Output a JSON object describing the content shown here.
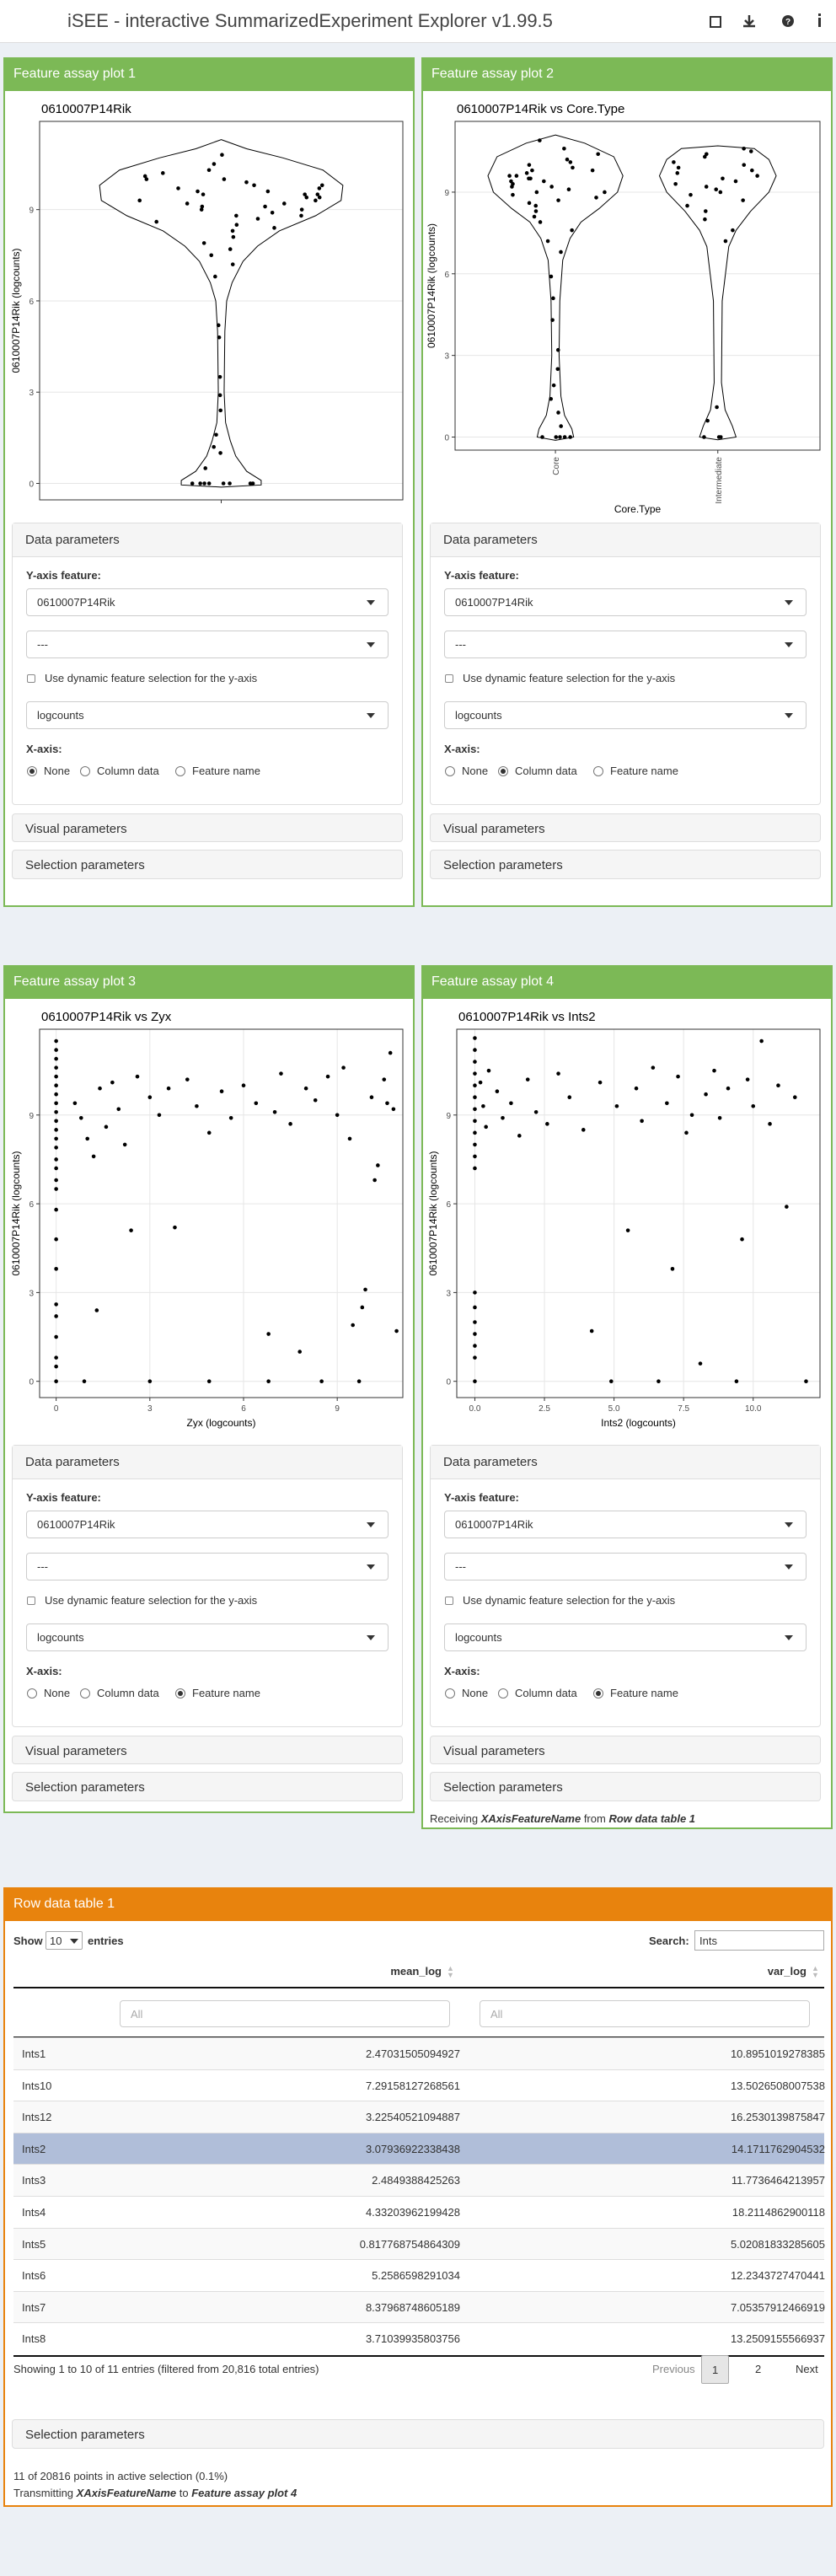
{
  "header": {
    "title": "iSEE - interactive SummarizedExperiment Explorer v1.99.5"
  },
  "panels": [
    {
      "title": "Feature assay plot 1",
      "plot": {
        "type": "violin",
        "title": "0610007P14Rik",
        "ylabel": "0610007P14Rik (logcounts)",
        "ylim": [
          -0.54,
          11.9
        ],
        "yticks": [
          0,
          3,
          6,
          9
        ],
        "grid": true,
        "point_color": "#000000",
        "series": [
          {
            "values": [
              10.8,
              10.5,
              10.3,
              10.2,
              10.1,
              10.0,
              10.0,
              9.9,
              9.8,
              9.8,
              9.7,
              9.7,
              9.6,
              9.6,
              9.5,
              9.5,
              9.5,
              9.4,
              9.4,
              9.3,
              9.3,
              9.2,
              9.2,
              9.1,
              9.1,
              9.0,
              9.0,
              8.9,
              8.8,
              8.8,
              8.7,
              8.6,
              8.5,
              8.4,
              8.3,
              8.1,
              7.9,
              7.7,
              7.5,
              7.2,
              6.8,
              5.2,
              4.8,
              3.5,
              2.9,
              2.4,
              1.6,
              1.2,
              1.0,
              0.5,
              0,
              0,
              0,
              0,
              0,
              0,
              0,
              0
            ]
          }
        ]
      },
      "data_parameters": {
        "heading": "Data parameters",
        "y_axis_label": "Y-axis feature:",
        "y_feature": "0610007P14Rik",
        "second_feature": "---",
        "dynamic_label": "Use dynamic feature selection for the y-axis",
        "assay": "logcounts",
        "x_axis_label": "X-axis:",
        "x_axis_options": [
          "None",
          "Column data",
          "Feature name"
        ],
        "x_axis_selected": 0
      },
      "visual_parameters": "Visual parameters",
      "selection_parameters": "Selection parameters"
    },
    {
      "title": "Feature assay plot 2",
      "plot": {
        "type": "violin",
        "title": "0610007P14Rik vs Core.Type",
        "ylabel": "0610007P14Rik (logcounts)",
        "xlabel": "Core.Type",
        "ylim": [
          -0.48,
          11.6
        ],
        "yticks": [
          0,
          3,
          6,
          9
        ],
        "grid": true,
        "point_color": "#000000",
        "series": [
          {
            "name": "Core",
            "values": [
              10.9,
              10.6,
              10.4,
              10.2,
              10.1,
              10.0,
              9.9,
              9.8,
              9.8,
              9.7,
              9.6,
              9.6,
              9.5,
              9.5,
              9.4,
              9.4,
              9.3,
              9.2,
              9.2,
              9.1,
              9.0,
              9.0,
              8.9,
              8.8,
              8.7,
              8.6,
              8.5,
              8.3,
              8.1,
              7.9,
              7.6,
              7.2,
              6.8,
              5.9,
              5.1,
              4.3,
              3.2,
              2.5,
              1.9,
              1.4,
              0.9,
              0.4,
              0,
              0,
              0,
              0,
              0
            ]
          },
          {
            "name": "Intermediate",
            "values": [
              10.6,
              10.5,
              10.4,
              10.3,
              10.1,
              10.0,
              9.9,
              9.8,
              9.7,
              9.6,
              9.5,
              9.4,
              9.3,
              9.2,
              9.1,
              9.0,
              8.9,
              8.7,
              8.5,
              8.3,
              8.0,
              7.6,
              7.2,
              1.1,
              0.6,
              0,
              0,
              0
            ]
          }
        ]
      },
      "data_parameters": {
        "heading": "Data parameters",
        "y_axis_label": "Y-axis feature:",
        "y_feature": "0610007P14Rik",
        "second_feature": "---",
        "dynamic_label": "Use dynamic feature selection for the y-axis",
        "assay": "logcounts",
        "x_axis_label": "X-axis:",
        "x_axis_options": [
          "None",
          "Column data",
          "Feature name"
        ],
        "x_axis_selected": 1
      },
      "visual_parameters": "Visual parameters",
      "selection_parameters": "Selection parameters"
    },
    {
      "title": "Feature assay plot 3",
      "plot": {
        "type": "scatter",
        "title": "0610007P14Rik vs Zyx",
        "ylabel": "0610007P14Rik (logcounts)",
        "xlabel": "Zyx (logcounts)",
        "xlim": [
          -0.53,
          11.1
        ],
        "xticks": [
          0,
          3,
          6,
          9
        ],
        "ylim": [
          -0.55,
          11.9
        ],
        "yticks": [
          0,
          3,
          6,
          9
        ],
        "grid": true,
        "point_color": "#000000",
        "points": [
          [
            0,
            11.5
          ],
          [
            0,
            11.2
          ],
          [
            0,
            10.9
          ],
          [
            0,
            10.6
          ],
          [
            0,
            10.3
          ],
          [
            0,
            10.0
          ],
          [
            0,
            9.7
          ],
          [
            0,
            9.4
          ],
          [
            0,
            9.1
          ],
          [
            0,
            8.8
          ],
          [
            0,
            8.5
          ],
          [
            0,
            8.2
          ],
          [
            0,
            7.9
          ],
          [
            0,
            7.5
          ],
          [
            0,
            7.2
          ],
          [
            0,
            6.8
          ],
          [
            0,
            6.5
          ],
          [
            0,
            5.8
          ],
          [
            0,
            4.8
          ],
          [
            0,
            3.8
          ],
          [
            0,
            2.6
          ],
          [
            0,
            2.2
          ],
          [
            0,
            1.5
          ],
          [
            0,
            0.8
          ],
          [
            0,
            0.5
          ],
          [
            0,
            0
          ],
          [
            0.6,
            9.4
          ],
          [
            0.8,
            8.9
          ],
          [
            1.0,
            8.2
          ],
          [
            1.2,
            7.6
          ],
          [
            1.4,
            9.9
          ],
          [
            1.6,
            8.6
          ],
          [
            1.8,
            10.1
          ],
          [
            2.0,
            9.2
          ],
          [
            2.2,
            8.0
          ],
          [
            2.4,
            5.1
          ],
          [
            2.6,
            10.3
          ],
          [
            3.0,
            9.6
          ],
          [
            3.3,
            9.0
          ],
          [
            3.6,
            9.9
          ],
          [
            3.8,
            5.2
          ],
          [
            4.2,
            10.2
          ],
          [
            4.5,
            9.3
          ],
          [
            4.9,
            8.4
          ],
          [
            5.3,
            9.8
          ],
          [
            5.6,
            8.9
          ],
          [
            6.0,
            10.0
          ],
          [
            6.4,
            9.4
          ],
          [
            6.8,
            1.6
          ],
          [
            7.0,
            9.1
          ],
          [
            7.2,
            10.4
          ],
          [
            7.5,
            8.7
          ],
          [
            7.8,
            1.0
          ],
          [
            8.0,
            9.9
          ],
          [
            8.3,
            9.5
          ],
          [
            8.5,
            0
          ],
          [
            8.7,
            10.3
          ],
          [
            9.0,
            9.0
          ],
          [
            9.2,
            10.6
          ],
          [
            9.4,
            8.2
          ],
          [
            9.5,
            1.9
          ],
          [
            9.7,
            0
          ],
          [
            9.8,
            2.5
          ],
          [
            9.9,
            3.1
          ],
          [
            10.1,
            9.6
          ],
          [
            10.3,
            7.3
          ],
          [
            10.5,
            10.2
          ],
          [
            10.7,
            11.1
          ],
          [
            10.9,
            1.7
          ],
          [
            10.6,
            9.4
          ],
          [
            1.3,
            2.4
          ],
          [
            0.9,
            0
          ],
          [
            3.0,
            0
          ],
          [
            6.8,
            0
          ],
          [
            4.9,
            0
          ],
          [
            10.2,
            6.8
          ],
          [
            10.8,
            9.2
          ]
        ]
      },
      "data_parameters": {
        "heading": "Data parameters",
        "y_axis_label": "Y-axis feature:",
        "y_feature": "0610007P14Rik",
        "second_feature": "---",
        "dynamic_label": "Use dynamic feature selection for the y-axis",
        "assay": "logcounts",
        "x_axis_label": "X-axis:",
        "x_axis_options": [
          "None",
          "Column data",
          "Feature name"
        ],
        "x_axis_selected": 2
      },
      "visual_parameters": "Visual parameters",
      "selection_parameters": "Selection parameters"
    },
    {
      "title": "Feature assay plot 4",
      "plot": {
        "type": "scatter",
        "title": "0610007P14Rik vs Ints2",
        "ylabel": "0610007P14Rik (logcounts)",
        "xlabel": "Ints2 (logcounts)",
        "xlim": [
          -0.65,
          12.4
        ],
        "xticks": [
          {
            "value": 0,
            "label": "0.0"
          },
          {
            "value": 2.5,
            "label": "2.5"
          },
          {
            "value": 5,
            "label": "5.0"
          },
          {
            "value": 7.5,
            "label": "7.5"
          },
          {
            "value": 10,
            "label": "10.0"
          }
        ],
        "ylim": [
          -0.55,
          11.9
        ],
        "yticks": [
          0,
          3,
          6,
          9
        ],
        "grid": true,
        "point_color": "#000000",
        "points": [
          [
            0,
            11.6
          ],
          [
            0,
            11.2
          ],
          [
            0,
            10.8
          ],
          [
            0,
            10.4
          ],
          [
            0,
            10.0
          ],
          [
            0,
            9.6
          ],
          [
            0,
            9.2
          ],
          [
            0,
            8.8
          ],
          [
            0,
            8.4
          ],
          [
            0,
            8.0
          ],
          [
            0,
            7.6
          ],
          [
            0,
            7.2
          ],
          [
            0,
            3.0
          ],
          [
            0,
            2.5
          ],
          [
            0,
            2.0
          ],
          [
            0,
            1.6
          ],
          [
            0,
            1.2
          ],
          [
            0,
            0.8
          ],
          [
            0,
            0
          ],
          [
            0.2,
            10.1
          ],
          [
            0.3,
            9.3
          ],
          [
            0.4,
            8.6
          ],
          [
            0.5,
            10.5
          ],
          [
            0.8,
            9.8
          ],
          [
            1.0,
            8.9
          ],
          [
            1.3,
            9.4
          ],
          [
            1.6,
            8.3
          ],
          [
            1.9,
            10.2
          ],
          [
            2.2,
            9.1
          ],
          [
            2.6,
            8.7
          ],
          [
            3.0,
            10.4
          ],
          [
            3.4,
            9.6
          ],
          [
            3.9,
            8.5
          ],
          [
            4.2,
            1.7
          ],
          [
            4.5,
            10.1
          ],
          [
            4.9,
            0
          ],
          [
            5.1,
            9.3
          ],
          [
            5.5,
            5.1
          ],
          [
            5.8,
            9.9
          ],
          [
            6.0,
            8.8
          ],
          [
            6.4,
            10.6
          ],
          [
            6.6,
            0
          ],
          [
            6.9,
            9.4
          ],
          [
            7.1,
            3.8
          ],
          [
            7.3,
            10.3
          ],
          [
            7.6,
            8.4
          ],
          [
            7.8,
            9.0
          ],
          [
            8.1,
            0.6
          ],
          [
            8.3,
            9.7
          ],
          [
            8.6,
            10.5
          ],
          [
            8.8,
            8.9
          ],
          [
            9.1,
            9.9
          ],
          [
            9.4,
            0
          ],
          [
            9.6,
            4.8
          ],
          [
            9.8,
            10.2
          ],
          [
            10.0,
            9.3
          ],
          [
            10.3,
            11.5
          ],
          [
            10.6,
            8.7
          ],
          [
            10.9,
            10.0
          ],
          [
            11.2,
            5.9
          ],
          [
            11.5,
            9.6
          ],
          [
            11.9,
            0
          ]
        ]
      },
      "data_parameters": {
        "heading": "Data parameters",
        "y_axis_label": "Y-axis feature:",
        "y_feature": "0610007P14Rik",
        "second_feature": "---",
        "dynamic_label": "Use dynamic feature selection for the y-axis",
        "assay": "logcounts",
        "x_axis_label": "X-axis:",
        "x_axis_options": [
          "None",
          "Column data",
          "Feature name"
        ],
        "x_axis_selected": 2
      },
      "visual_parameters": "Visual parameters",
      "selection_parameters": "Selection parameters",
      "receiving": [
        "Receiving ",
        "XAxisFeatureName",
        " from ",
        "Row data table 1"
      ],
      "receiving_emphasis": [
        1,
        3
      ]
    }
  ],
  "table_panel": {
    "title": "Row data table 1",
    "show": "Show",
    "length": "10",
    "entries": "entries",
    "search_label": "Search:",
    "search_value": "Ints",
    "columns": [
      "mean_log",
      "var_log"
    ],
    "filter_placeholder": "All",
    "rows": [
      [
        "Ints1",
        "2.47031505094927",
        "10.8951019278385"
      ],
      [
        "Ints10",
        "7.29158127268561",
        "13.5026508007538"
      ],
      [
        "Ints12",
        "3.22540521094887",
        "16.2530139875847"
      ],
      [
        "Ints2",
        "3.07936922338438",
        "14.1711762904532"
      ],
      [
        "Ints3",
        "2.4849388425263",
        "11.7736464213957"
      ],
      [
        "Ints4",
        "4.33203962199428",
        "18.2114862900118"
      ],
      [
        "Ints5",
        "0.817768754864309",
        "5.02081833285605"
      ],
      [
        "Ints6",
        "5.2586598291034",
        "12.2343727470441"
      ],
      [
        "Ints7",
        "8.37968748605189",
        "7.05357912466919"
      ],
      [
        "Ints8",
        "3.71039935803756",
        "13.2509155566937"
      ]
    ],
    "selected_row": 3,
    "info": "Showing 1 to 10 of 11 entries (filtered from 20,816 total entries)",
    "pagination": [
      "Previous",
      "1",
      "2",
      "Next"
    ],
    "current_page": 1,
    "selection_parameters": "Selection parameters",
    "status": "11 of 20816 points in active selection (0.1%)",
    "transmit": [
      "Transmitting ",
      "XAxisFeatureName",
      " to ",
      "Feature assay plot 4"
    ],
    "transmit_emphasis": [
      1,
      3
    ]
  }
}
